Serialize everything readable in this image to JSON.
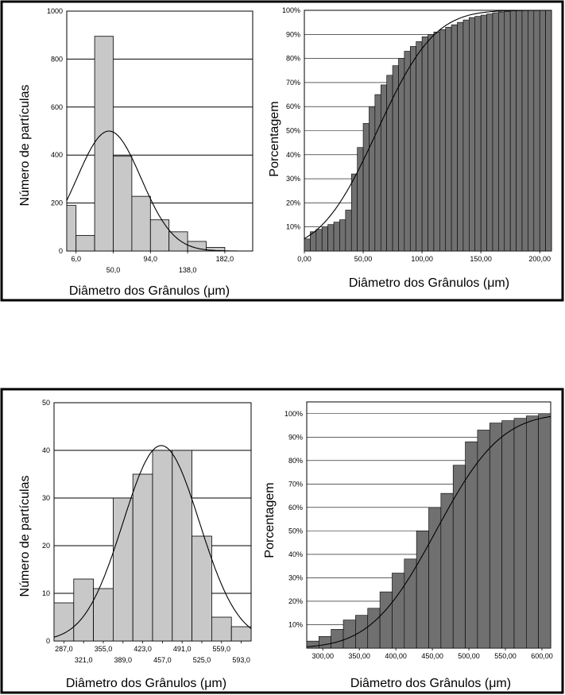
{
  "chart_data": [
    {
      "type": "bar",
      "panel": "top",
      "ylabel": "Número de partículas",
      "xlabel": "Diâmetro dos Grânulos (μm)",
      "ylim": [
        0,
        1000
      ],
      "yticks": [
        0,
        200,
        400,
        600,
        800,
        1000
      ],
      "ytick_labels": [
        "0",
        "200",
        "400",
        "600",
        "800",
        "1000"
      ],
      "xticks": [
        {
          "value": 6,
          "label": "6,0",
          "row": 1
        },
        {
          "value": 50,
          "label": "50,0",
          "row": 2
        },
        {
          "value": 94,
          "label": "94,0",
          "row": 1
        },
        {
          "value": 138,
          "label": "138,0",
          "row": 2
        },
        {
          "value": 182,
          "label": "182,0",
          "row": 1
        }
      ],
      "xlim": [
        -5,
        215
      ],
      "bins": [
        {
          "x0": -5,
          "x1": 6,
          "value": 190
        },
        {
          "x0": 6,
          "x1": 28,
          "value": 65
        },
        {
          "x0": 28,
          "x1": 50,
          "value": 895
        },
        {
          "x0": 50,
          "x1": 72,
          "value": 395
        },
        {
          "x0": 72,
          "x1": 94,
          "value": 228
        },
        {
          "x0": 94,
          "x1": 116,
          "value": 130
        },
        {
          "x0": 116,
          "x1": 138,
          "value": 80
        },
        {
          "x0": 138,
          "x1": 160,
          "value": 40
        },
        {
          "x0": 160,
          "x1": 182,
          "value": 15
        }
      ],
      "normal_curve": {
        "mean": 45,
        "sd": 38,
        "peak": 500
      },
      "grid": true,
      "bar_color": "#c8c8c8"
    },
    {
      "type": "bar",
      "panel": "top",
      "ylabel": "Porcentagem",
      "xlabel": "Diâmetro dos Grânulos (μm)",
      "ylim": [
        0,
        100
      ],
      "yticks": [
        10,
        20,
        30,
        40,
        50,
        60,
        70,
        80,
        90,
        100
      ],
      "ytick_labels": [
        "10%",
        "20%",
        "30%",
        "40%",
        "50%",
        "60%",
        "70%",
        "80%",
        "90%",
        "100%"
      ],
      "xticks": [
        {
          "value": 0,
          "label": "0,00"
        },
        {
          "value": 50,
          "label": "50,00"
        },
        {
          "value": 100,
          "label": "100,00"
        },
        {
          "value": 150,
          "label": "150,00"
        },
        {
          "value": 200,
          "label": "200,00"
        }
      ],
      "xlim": [
        0,
        210
      ],
      "bin_start": 0,
      "bin_width": 5,
      "values": [
        5,
        8,
        9,
        10,
        11,
        12,
        13,
        17,
        32,
        43,
        53,
        60,
        65,
        69,
        73,
        77,
        80,
        83,
        85,
        87,
        89,
        90,
        91,
        92,
        93,
        94,
        95,
        96,
        97,
        97.5,
        98,
        98.5,
        99,
        99.3,
        99.6,
        99.8,
        99.9,
        100,
        100,
        100,
        100,
        100
      ],
      "cdf_curve": {
        "mean": 62,
        "sd": 38
      },
      "grid": true,
      "bar_color": "#707070"
    },
    {
      "type": "bar",
      "panel": "bottom",
      "ylabel": "Número de partículas",
      "xlabel": "Diâmetro dos Grânulos (μm)",
      "ylim": [
        0,
        50
      ],
      "yticks": [
        0,
        10,
        20,
        30,
        40,
        50
      ],
      "ytick_labels": [
        "0",
        "10",
        "20",
        "30",
        "40",
        "50"
      ],
      "xticks": [
        {
          "value": 287,
          "label": "287,0",
          "row": 1
        },
        {
          "value": 321,
          "label": "321,0",
          "row": 2
        },
        {
          "value": 355,
          "label": "355,0",
          "row": 1
        },
        {
          "value": 389,
          "label": "389,0",
          "row": 2
        },
        {
          "value": 423,
          "label": "423,0",
          "row": 1
        },
        {
          "value": 457,
          "label": "457,0",
          "row": 2
        },
        {
          "value": 491,
          "label": "491,0",
          "row": 1
        },
        {
          "value": 525,
          "label": "525,0",
          "row": 2
        },
        {
          "value": 559,
          "label": "559,0",
          "row": 1
        },
        {
          "value": 593,
          "label": "593,0",
          "row": 2
        }
      ],
      "xlim": [
        270,
        610
      ],
      "bins": [
        {
          "x0": 270,
          "x1": 304,
          "value": 8
        },
        {
          "x0": 304,
          "x1": 338,
          "value": 13
        },
        {
          "x0": 338,
          "x1": 372,
          "value": 11
        },
        {
          "x0": 372,
          "x1": 406,
          "value": 30
        },
        {
          "x0": 406,
          "x1": 440,
          "value": 35
        },
        {
          "x0": 440,
          "x1": 474,
          "value": 40
        },
        {
          "x0": 474,
          "x1": 508,
          "value": 40
        },
        {
          "x0": 508,
          "x1": 542,
          "value": 22
        },
        {
          "x0": 542,
          "x1": 576,
          "value": 5
        },
        {
          "x0": 576,
          "x1": 610,
          "value": 3
        }
      ],
      "normal_curve": {
        "mean": 455,
        "sd": 66,
        "peak": 41
      },
      "grid": true,
      "bar_color": "#c8c8c8"
    },
    {
      "type": "bar",
      "panel": "bottom",
      "ylabel": "Porcentagem",
      "xlabel": "Diâmetro dos Grânulos (μm)",
      "ylim": [
        0,
        105
      ],
      "yticks": [
        10,
        20,
        30,
        40,
        50,
        60,
        70,
        80,
        90,
        100
      ],
      "ytick_labels": [
        "10%",
        "20%",
        "30%",
        "40%",
        "50%",
        "60%",
        "70%",
        "80%",
        "90%",
        "100%"
      ],
      "xticks": [
        {
          "value": 300,
          "label": "300,00"
        },
        {
          "value": 350,
          "label": "350,00"
        },
        {
          "value": 400,
          "label": "400,00"
        },
        {
          "value": 450,
          "label": "450,00"
        },
        {
          "value": 500,
          "label": "500,00"
        },
        {
          "value": 550,
          "label": "550,00"
        },
        {
          "value": 600,
          "label": "600,00"
        }
      ],
      "xlim": [
        278,
        612
      ],
      "bin_start": 278,
      "bin_width": 16.7,
      "values": [
        3,
        5,
        8,
        12,
        14,
        17,
        24,
        32,
        38,
        50,
        60,
        66,
        78,
        88,
        93,
        96,
        97,
        98,
        99,
        100
      ],
      "cdf_curve": {
        "mean": 455,
        "sd": 70
      },
      "grid": true,
      "bar_color": "#707070"
    }
  ]
}
